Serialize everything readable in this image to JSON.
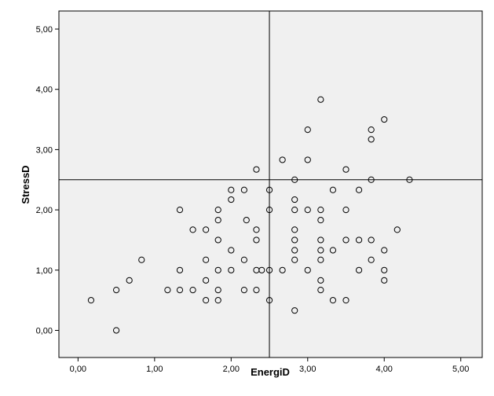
{
  "chart_data": {
    "type": "scatter",
    "title": "",
    "xlabel": "EnergiD",
    "ylabel": "StressD",
    "xlim": [
      -0.25,
      5.28
    ],
    "ylim": [
      -0.45,
      5.3
    ],
    "x_ticks": [
      "0,00",
      "1,00",
      "2,00",
      "3,00",
      "4,00",
      "5,00"
    ],
    "y_ticks": [
      "0,00",
      "1,00",
      "2,00",
      "3,00",
      "4,00",
      "5,00"
    ],
    "x_tick_values": [
      0,
      1,
      2,
      3,
      4,
      5
    ],
    "y_tick_values": [
      0,
      1,
      2,
      3,
      4,
      5
    ],
    "reference_lines": {
      "x": 2.5,
      "y": 2.5
    },
    "grid": false,
    "colors": {
      "plot_background": "#f0f0f0",
      "marker_stroke": "#000000",
      "frame": "#000000"
    },
    "points": [
      [
        0.17,
        0.5
      ],
      [
        0.5,
        0.0
      ],
      [
        0.5,
        0.67
      ],
      [
        0.67,
        0.83
      ],
      [
        0.83,
        1.17
      ],
      [
        1.17,
        0.67
      ],
      [
        1.33,
        0.67
      ],
      [
        1.33,
        1.0
      ],
      [
        1.33,
        2.0
      ],
      [
        1.5,
        0.67
      ],
      [
        1.5,
        1.67
      ],
      [
        1.67,
        0.5
      ],
      [
        1.67,
        0.83
      ],
      [
        1.67,
        1.17
      ],
      [
        1.67,
        1.67
      ],
      [
        1.83,
        0.5
      ],
      [
        1.83,
        0.67
      ],
      [
        1.83,
        1.0
      ],
      [
        1.83,
        1.5
      ],
      [
        1.83,
        1.83
      ],
      [
        1.83,
        2.0
      ],
      [
        2.0,
        1.0
      ],
      [
        2.0,
        1.33
      ],
      [
        2.0,
        2.17
      ],
      [
        2.0,
        2.33
      ],
      [
        2.17,
        0.67
      ],
      [
        2.17,
        1.17
      ],
      [
        2.17,
        2.33
      ],
      [
        2.2,
        1.83
      ],
      [
        2.33,
        0.67
      ],
      [
        2.33,
        1.0
      ],
      [
        2.33,
        1.5
      ],
      [
        2.33,
        1.67
      ],
      [
        2.33,
        2.67
      ],
      [
        2.4,
        1.0
      ],
      [
        2.5,
        0.5
      ],
      [
        2.5,
        1.0
      ],
      [
        2.5,
        2.0
      ],
      [
        2.5,
        2.33
      ],
      [
        2.67,
        1.0
      ],
      [
        2.67,
        2.83
      ],
      [
        2.83,
        0.33
      ],
      [
        2.83,
        1.17
      ],
      [
        2.83,
        1.33
      ],
      [
        2.83,
        1.5
      ],
      [
        2.83,
        1.67
      ],
      [
        2.83,
        2.0
      ],
      [
        2.83,
        2.17
      ],
      [
        2.83,
        2.5
      ],
      [
        3.0,
        1.0
      ],
      [
        3.0,
        2.0
      ],
      [
        3.0,
        2.83
      ],
      [
        3.0,
        3.33
      ],
      [
        3.17,
        0.67
      ],
      [
        3.17,
        0.83
      ],
      [
        3.17,
        1.17
      ],
      [
        3.17,
        1.33
      ],
      [
        3.17,
        1.5
      ],
      [
        3.17,
        1.83
      ],
      [
        3.17,
        2.0
      ],
      [
        3.17,
        3.83
      ],
      [
        3.33,
        0.5
      ],
      [
        3.33,
        1.33
      ],
      [
        3.33,
        2.33
      ],
      [
        3.5,
        0.5
      ],
      [
        3.5,
        1.5
      ],
      [
        3.5,
        2.0
      ],
      [
        3.5,
        2.67
      ],
      [
        3.67,
        1.0
      ],
      [
        3.67,
        1.5
      ],
      [
        3.67,
        2.33
      ],
      [
        3.83,
        1.17
      ],
      [
        3.83,
        1.5
      ],
      [
        3.83,
        2.5
      ],
      [
        3.83,
        3.17
      ],
      [
        3.83,
        3.33
      ],
      [
        4.0,
        0.83
      ],
      [
        4.0,
        1.0
      ],
      [
        4.0,
        1.33
      ],
      [
        4.0,
        3.5
      ],
      [
        4.17,
        1.67
      ],
      [
        4.33,
        2.5
      ]
    ]
  }
}
